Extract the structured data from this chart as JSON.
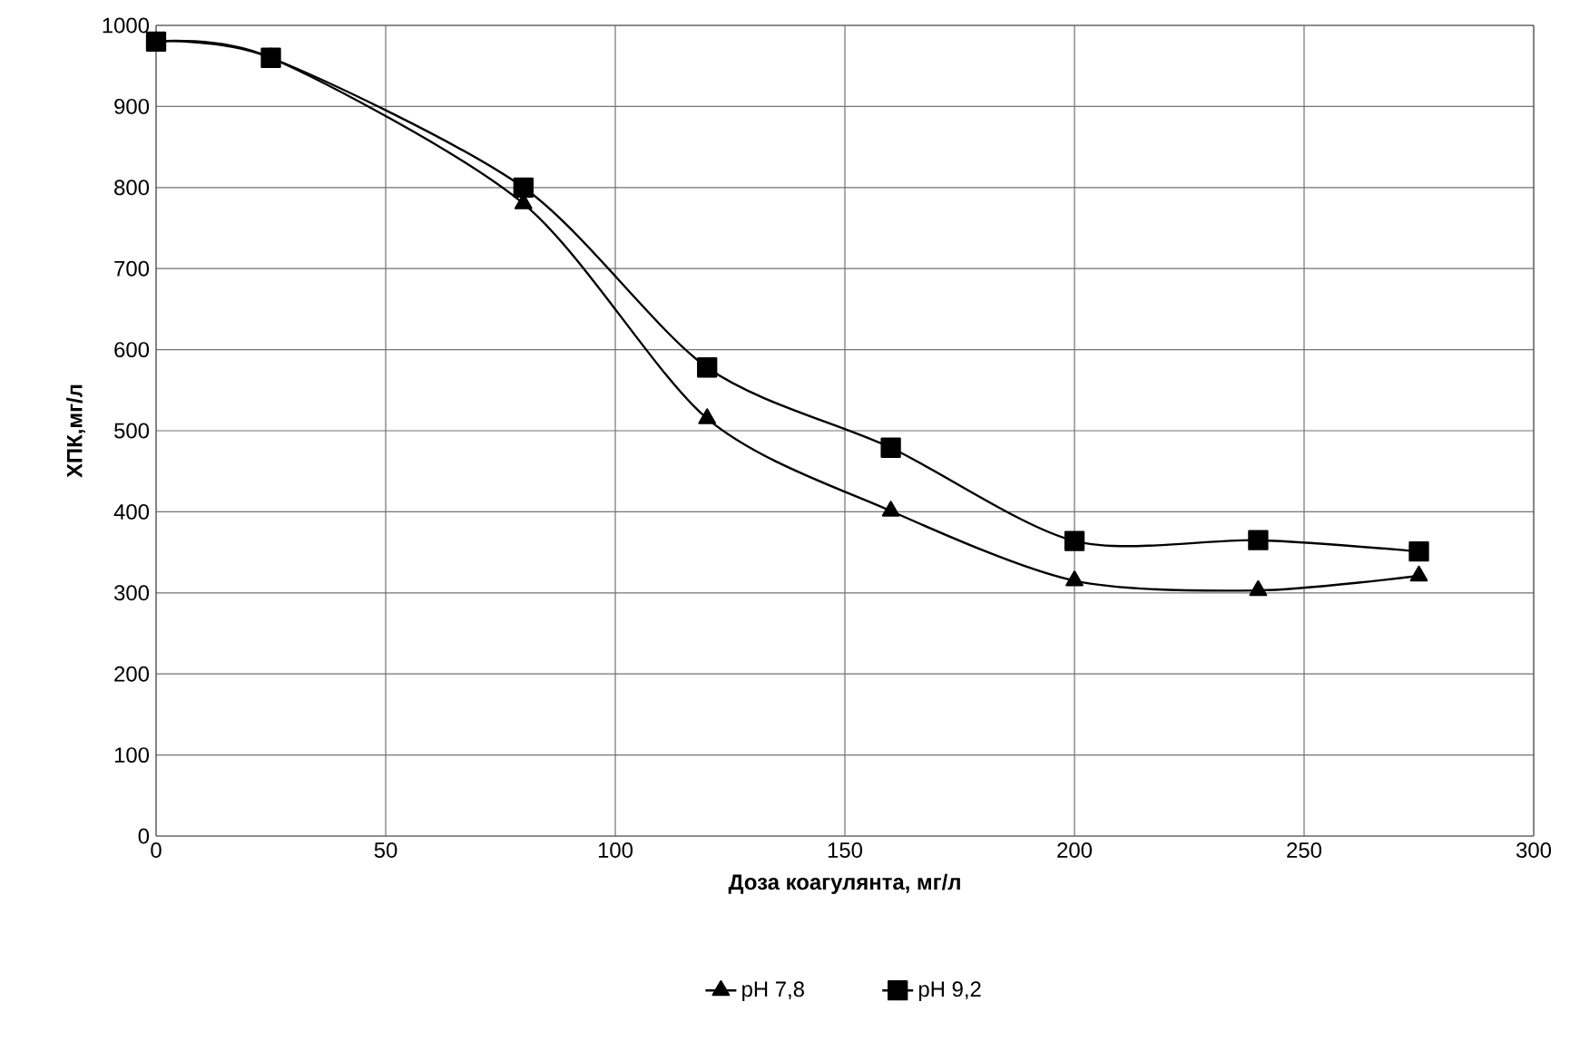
{
  "chart_data": {
    "type": "line",
    "xlabel": "Доза коагулянта, мг/л",
    "ylabel": "ХПК,мг/л",
    "x": [
      0,
      25,
      80,
      120,
      160,
      200,
      240,
      275
    ],
    "series": [
      {
        "name": "pH 7,8",
        "color": "#000000",
        "marker": "triangle",
        "values": [
          980,
          960,
          780,
          515,
          401,
          315,
          303,
          321
        ]
      },
      {
        "name": "pH 9,2",
        "color": "#000000",
        "marker": "square",
        "values": [
          980,
          960,
          800,
          578,
          479,
          364,
          365,
          351
        ]
      }
    ],
    "xlim": [
      0,
      300
    ],
    "xticks": [
      0,
      50,
      100,
      150,
      200,
      250,
      300
    ],
    "ylim": [
      0,
      1000
    ],
    "yticks": [
      0,
      100,
      200,
      300,
      400,
      500,
      600,
      700,
      800,
      900,
      1000
    ],
    "grid": true,
    "legend": "bottom",
    "line_style": "solid"
  }
}
